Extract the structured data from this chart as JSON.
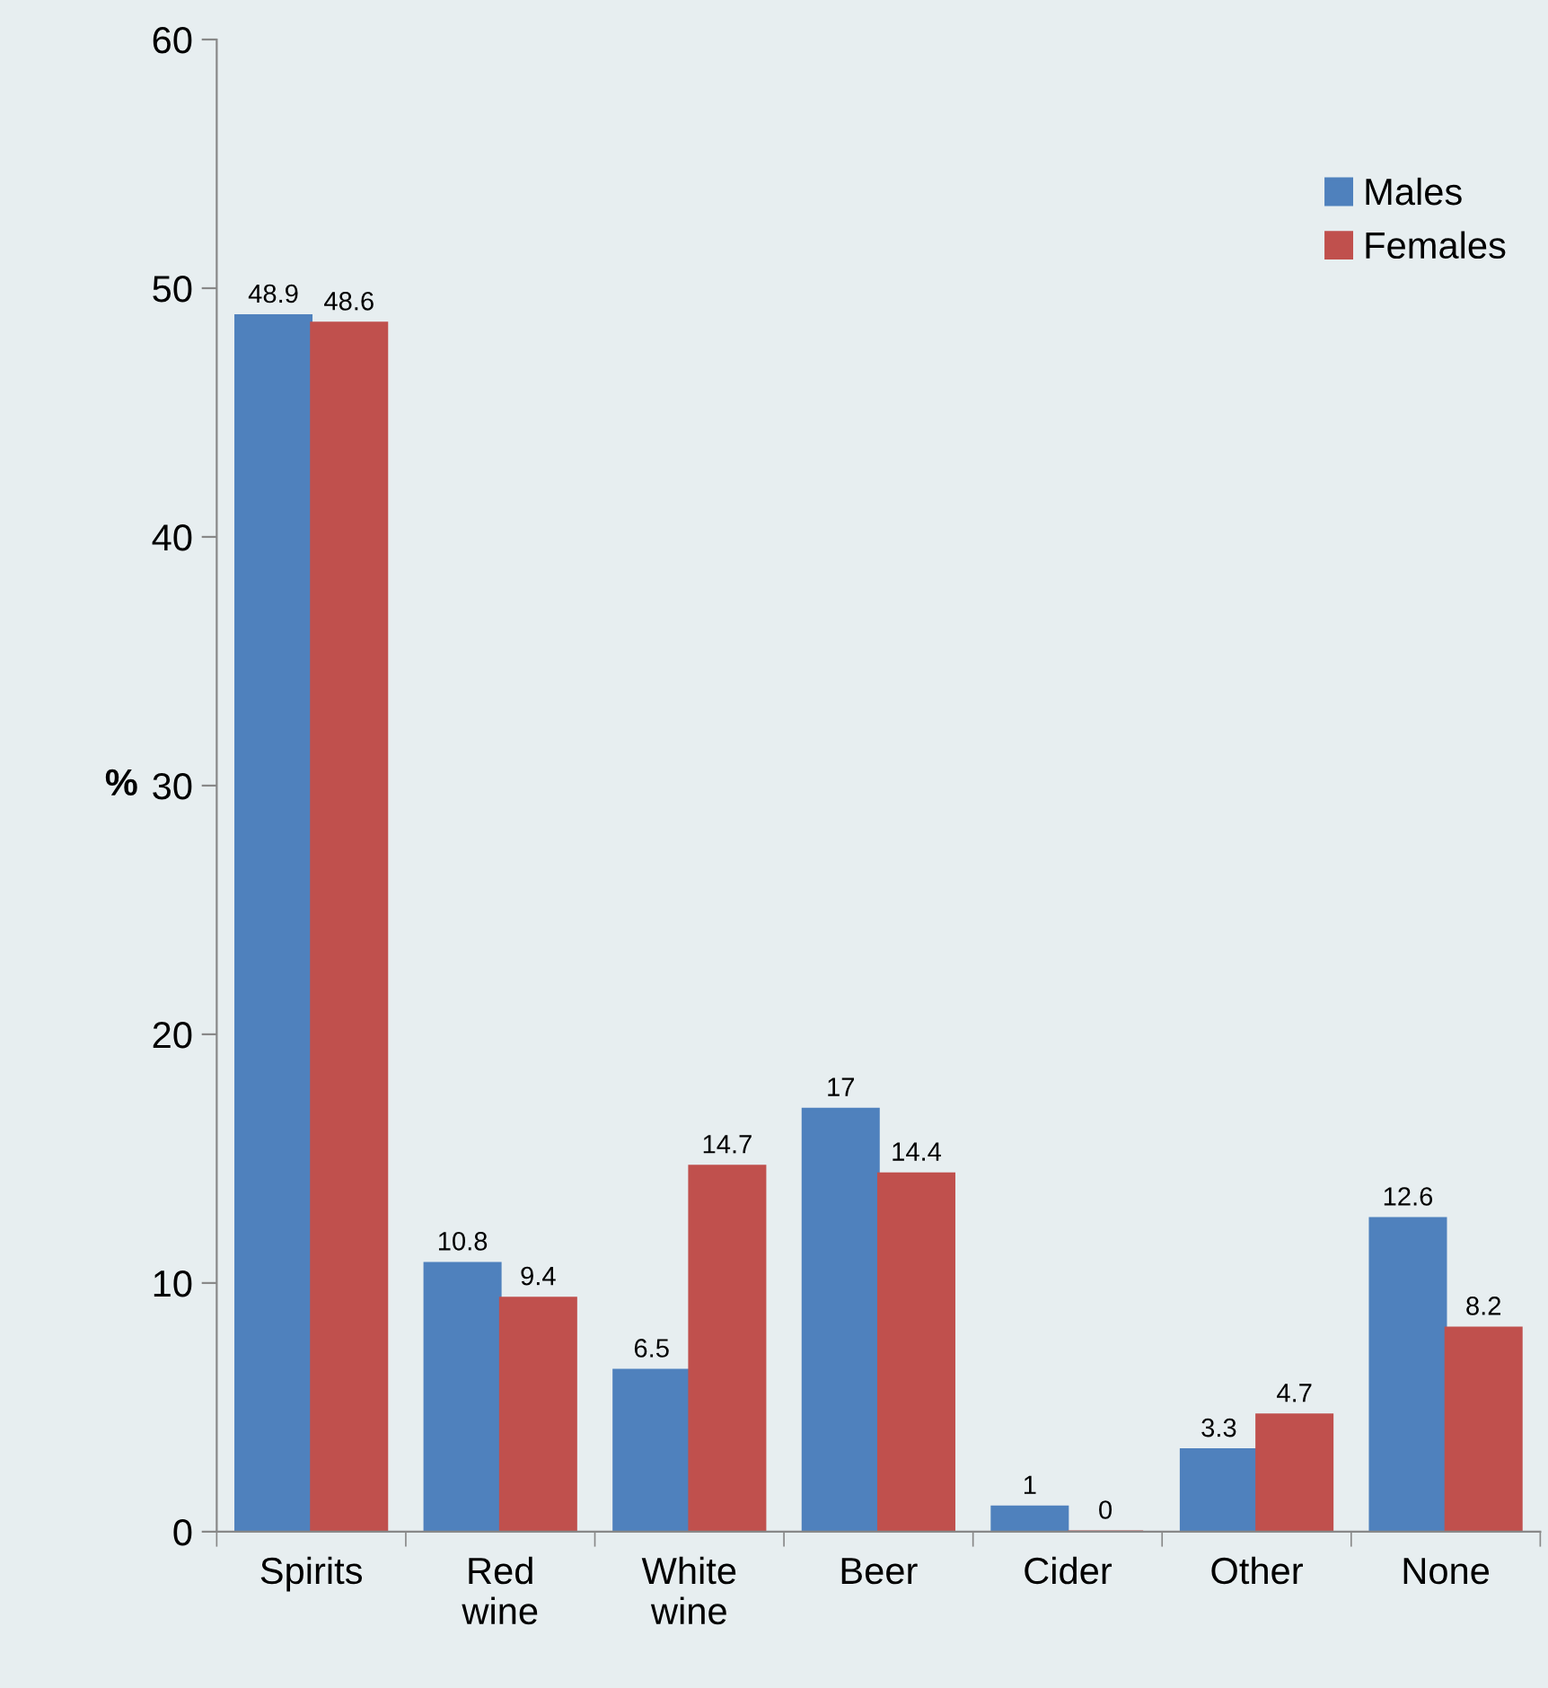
{
  "chart_data": {
    "type": "bar",
    "ylabel": "%",
    "categories": [
      "Spirits",
      "Red wine",
      "White wine",
      "Beer",
      "Cider",
      "Other",
      "None"
    ],
    "series": [
      {
        "name": "Males",
        "color": "#4f81bd",
        "values": [
          48.9,
          10.8,
          6.5,
          17,
          1,
          3.3,
          12.6
        ]
      },
      {
        "name": "Females",
        "color": "#c0504d",
        "values": [
          48.6,
          9.4,
          14.7,
          14.4,
          0,
          4.7,
          8.2
        ]
      }
    ],
    "ylim": [
      0,
      60
    ],
    "yticks": [
      0,
      10,
      20,
      30,
      40,
      50,
      60
    ],
    "data_labels": true,
    "legend": "top right",
    "grid": false
  }
}
